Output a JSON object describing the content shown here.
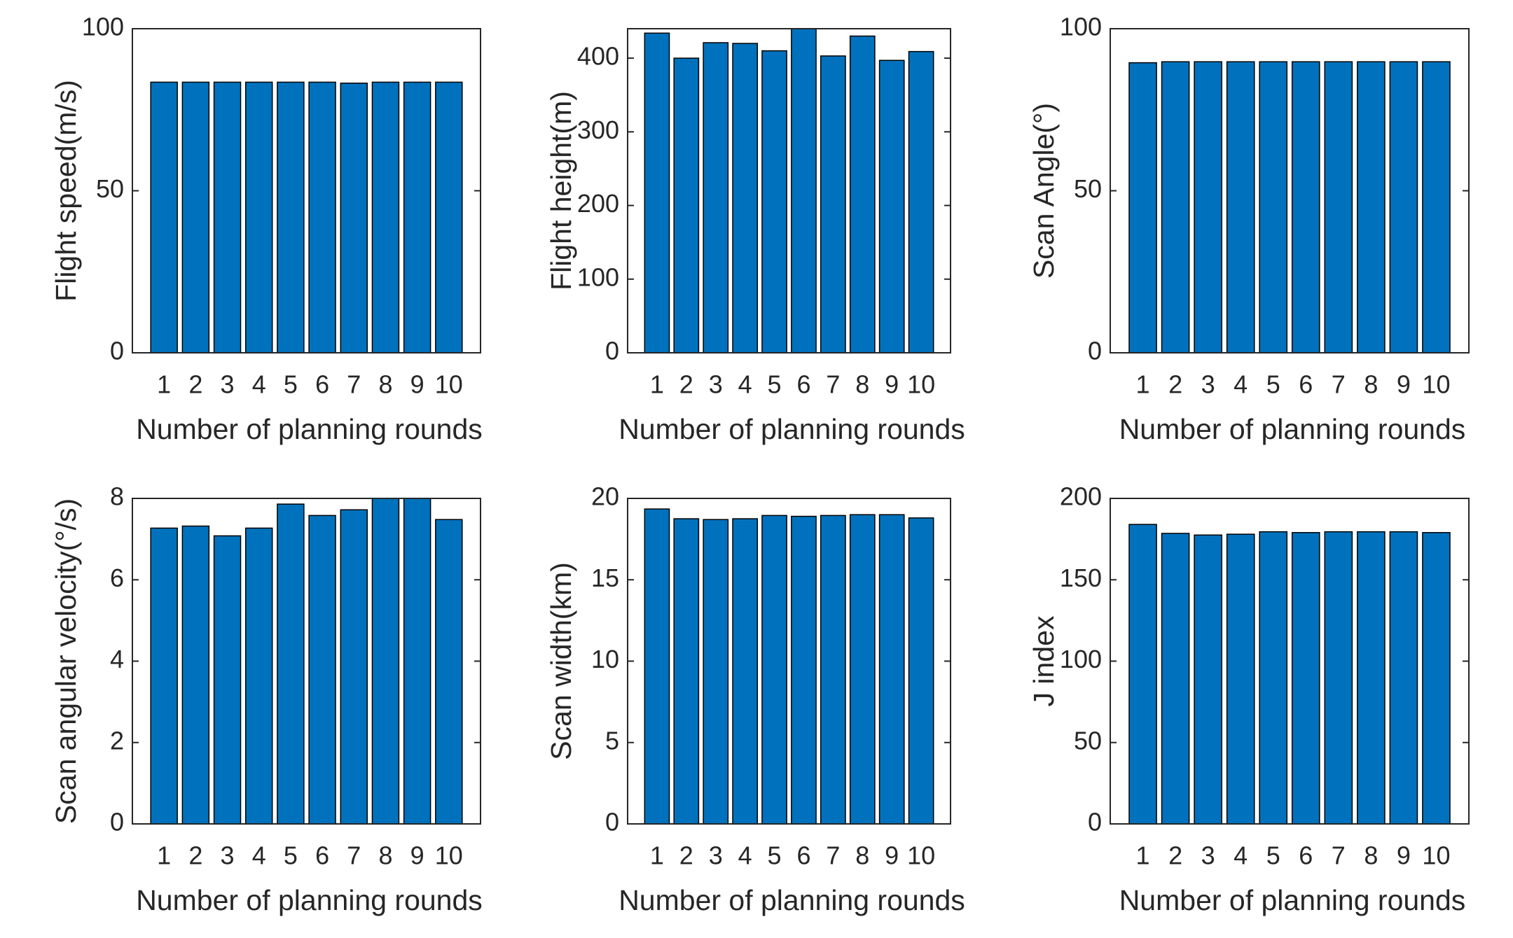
{
  "chart_data": [
    {
      "type": "bar",
      "ylabel": "Flight speed(m/s)",
      "xlabel": "Number of planning rounds",
      "categories": [
        "1",
        "2",
        "3",
        "4",
        "5",
        "6",
        "7",
        "8",
        "9",
        "10"
      ],
      "values": [
        83.5,
        83.5,
        83.5,
        83.5,
        83.5,
        83.5,
        83.2,
        83.5,
        83.5,
        83.5
      ],
      "color": "#0072bd",
      "ylim": [
        0,
        100
      ],
      "yticks": [
        0,
        50,
        100
      ]
    },
    {
      "type": "bar",
      "ylabel": "Flight height(m)",
      "xlabel": "Number of planning rounds",
      "categories": [
        "1",
        "2",
        "3",
        "4",
        "5",
        "6",
        "7",
        "8",
        "9",
        "10"
      ],
      "values": [
        434,
        400,
        421,
        420,
        410,
        445,
        403,
        430,
        397,
        409
      ],
      "color": "#0072bd",
      "ylim": [
        0,
        440
      ],
      "yticks": [
        0,
        100,
        200,
        300,
        400
      ]
    },
    {
      "type": "bar",
      "ylabel": "Scan Angle(°)",
      "xlabel": "Number of planning rounds",
      "categories": [
        "1",
        "2",
        "3",
        "4",
        "5",
        "6",
        "7",
        "8",
        "9",
        "10"
      ],
      "values": [
        89.5,
        89.8,
        89.8,
        89.8,
        89.8,
        89.8,
        89.8,
        89.8,
        89.8,
        89.8
      ],
      "color": "#0072bd",
      "ylim": [
        0,
        100
      ],
      "yticks": [
        0,
        50,
        100
      ]
    },
    {
      "type": "bar",
      "ylabel": "Scan angular velocity(°/s)",
      "xlabel": "Number of planning rounds",
      "categories": [
        "1",
        "2",
        "3",
        "4",
        "5",
        "6",
        "7",
        "8",
        "9",
        "10"
      ],
      "values": [
        7.27,
        7.32,
        7.08,
        7.27,
        7.86,
        7.58,
        7.72,
        8.1,
        8.05,
        7.48
      ],
      "color": "#0072bd",
      "ylim": [
        0,
        8
      ],
      "yticks": [
        0,
        2,
        4,
        6,
        8
      ]
    },
    {
      "type": "bar",
      "ylabel": "Scan width(km)",
      "xlabel": "Number of planning rounds",
      "categories": [
        "1",
        "2",
        "3",
        "4",
        "5",
        "6",
        "7",
        "8",
        "9",
        "10"
      ],
      "values": [
        19.35,
        18.75,
        18.7,
        18.75,
        18.95,
        18.9,
        18.95,
        19.0,
        19.0,
        18.8
      ],
      "color": "#0072bd",
      "ylim": [
        0,
        20
      ],
      "yticks": [
        0,
        5,
        10,
        15,
        20
      ]
    },
    {
      "type": "bar",
      "ylabel": "J index",
      "xlabel": "Number of planning rounds",
      "categories": [
        "1",
        "2",
        "3",
        "4",
        "5",
        "6",
        "7",
        "8",
        "9",
        "10"
      ],
      "values": [
        184,
        178.5,
        177.5,
        178,
        179.5,
        179,
        179.5,
        179.5,
        179.5,
        179
      ],
      "color": "#0072bd",
      "ylim": [
        0,
        200
      ],
      "yticks": [
        0,
        50,
        100,
        150,
        200
      ]
    }
  ]
}
